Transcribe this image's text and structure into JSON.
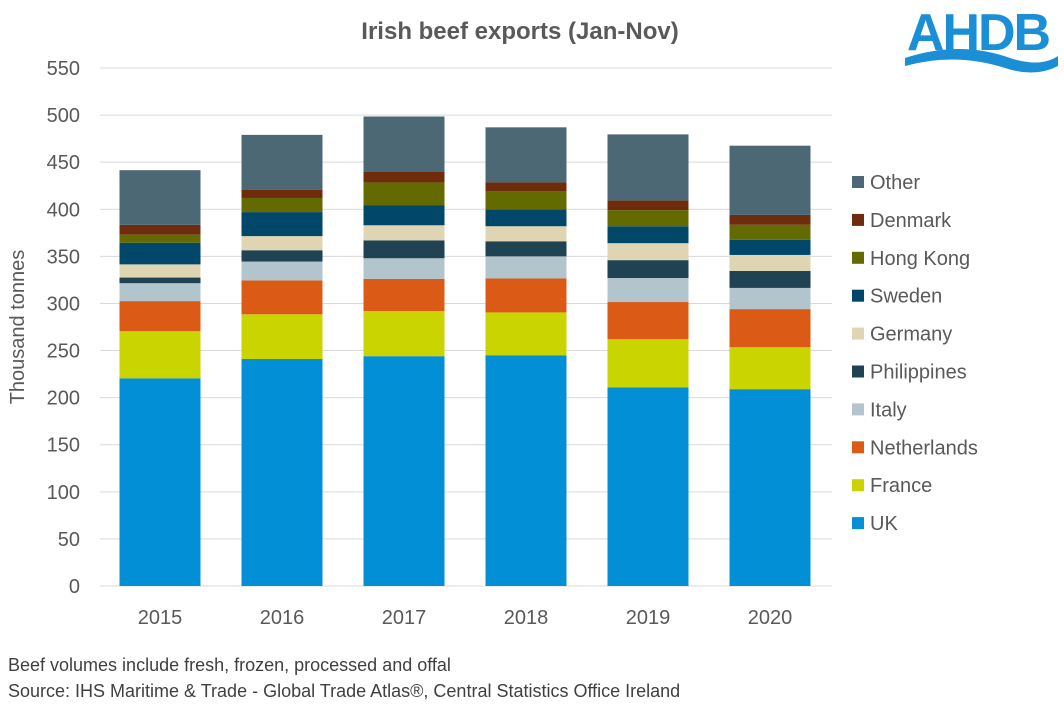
{
  "logo_text": "AHDB",
  "chart_data": {
    "type": "bar",
    "stacked": true,
    "title": "Irish beef exports (Jan-Nov)",
    "xlabel": "",
    "ylabel": "Thousand tonnes",
    "ylim": [
      0,
      550
    ],
    "yticks": [
      0,
      50,
      100,
      150,
      200,
      250,
      300,
      350,
      400,
      450,
      500,
      550
    ],
    "grid": true,
    "legend_position": "right",
    "categories": [
      "2015",
      "2016",
      "2017",
      "2018",
      "2019",
      "2020"
    ],
    "series": [
      {
        "name": "UK",
        "color": "#038fd6",
        "values": [
          220.5,
          241,
          244,
          245,
          211,
          209
        ]
      },
      {
        "name": "France",
        "color": "#c9d400",
        "values": [
          50,
          47.5,
          48,
          45.5,
          51,
          44.5
        ]
      },
      {
        "name": "Netherlands",
        "color": "#db5a15",
        "values": [
          32,
          36,
          34,
          36,
          39.5,
          40.5
        ]
      },
      {
        "name": "Italy",
        "color": "#b3c5cc",
        "values": [
          19,
          20,
          22,
          23.5,
          25.5,
          22.5
        ]
      },
      {
        "name": "Philippines",
        "color": "#1f4352",
        "values": [
          6,
          12,
          19,
          16,
          19,
          18
        ]
      },
      {
        "name": "Germany",
        "color": "#dfd5b3",
        "values": [
          14,
          15,
          16,
          16,
          18,
          17
        ]
      },
      {
        "name": "Sweden",
        "color": "#01476a",
        "values": [
          23,
          25.5,
          21,
          18,
          18,
          16
        ]
      },
      {
        "name": "Hong Kong",
        "color": "#636a00",
        "values": [
          8.5,
          15,
          24.5,
          19,
          17,
          16
        ]
      },
      {
        "name": "Denmark",
        "color": "#6e2c0c",
        "values": [
          10.5,
          8.5,
          11.5,
          9.5,
          10.5,
          10.5
        ]
      },
      {
        "name": "Other",
        "color": "#4b6874",
        "values": [
          58,
          58.5,
          58.5,
          58.5,
          70,
          73.5
        ]
      }
    ]
  },
  "footnotes": [
    "Beef volumes include fresh, frozen, processed and offal",
    "Source: IHS Maritime & Trade - Global Trade Atlas®, Central Statistics Office Ireland"
  ]
}
